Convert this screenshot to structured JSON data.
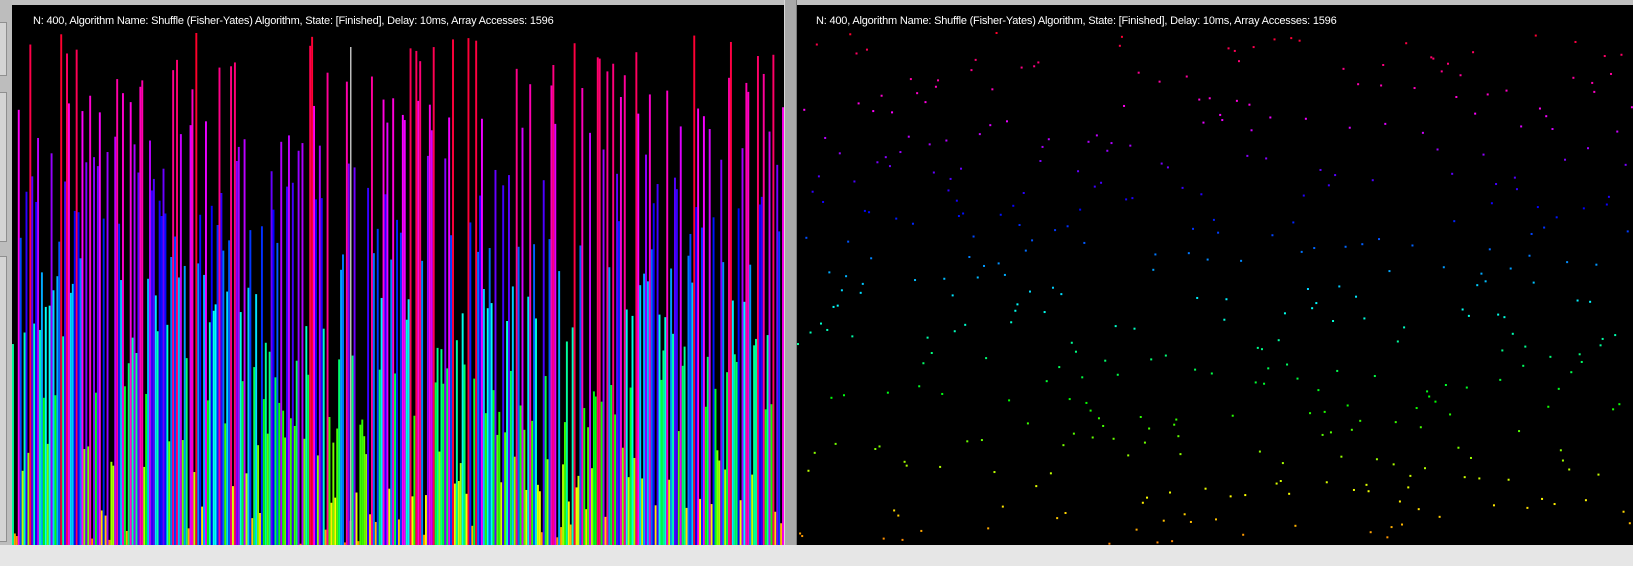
{
  "window": {
    "panels": [
      {
        "id": "bars",
        "status_text": "N: 400, Algorithm Name: Shuffle (Fisher-Yates) Algorithm, State: [Finished], Delay: 10ms, Array Accesses: 1596",
        "visualization": "bars"
      },
      {
        "id": "dots",
        "status_text": "N: 400, Algorithm Name: Shuffle (Fisher-Yates) Algorithm, State: [Finished], Delay: 10ms, Array Accesses: 1596",
        "visualization": "dots"
      }
    ]
  },
  "array": {
    "n": 400,
    "algorithm": "Shuffle (Fisher-Yates)",
    "state": "Finished",
    "color_mapping": "value-to-hue (low=red/orange, mid=green/cyan, high=blue/magenta/red)"
  }
}
